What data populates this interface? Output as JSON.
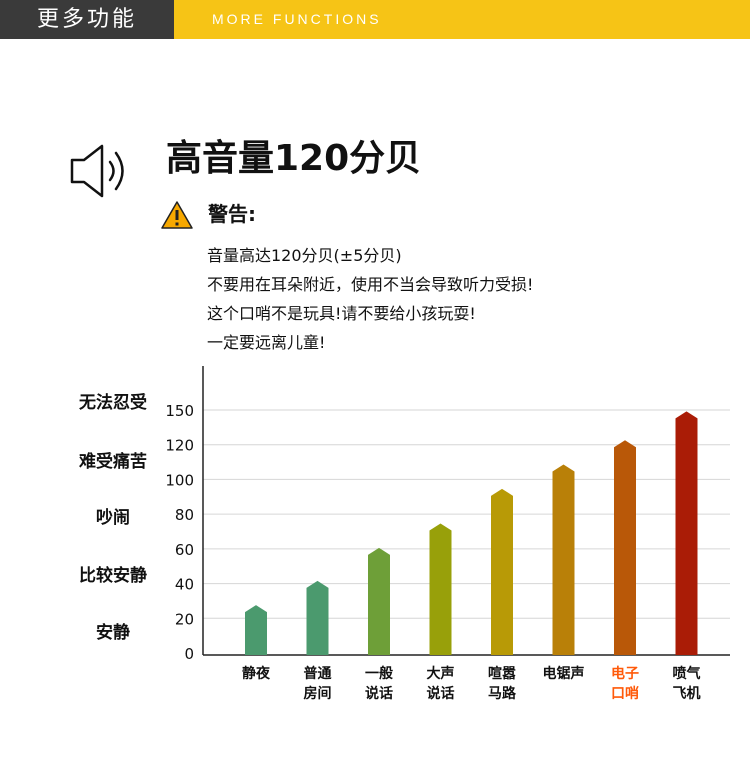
{
  "header": {
    "cn_title": "更多功能",
    "en_title": "MORE FUNCTIONS"
  },
  "feature": {
    "title": "高音量120分贝",
    "icon": "speaker-icon"
  },
  "warning": {
    "icon": "warning-triangle-icon",
    "title": "警告:",
    "lines": [
      "音量高达120分贝(±5分贝)",
      "不要用在耳朵附近，使用不当会导致听力受损!",
      "这个口哨不是玩具!请不要给小孩玩耍!",
      "一定要远离儿童!"
    ]
  },
  "levels": [
    "无法忍受",
    "难受痛苦",
    "吵闹",
    "比较安静",
    "安静"
  ],
  "colors": {
    "header_bg": "#f6c416",
    "header_dark": "#3a3a3a",
    "highlight_label": "#ff5a0a"
  },
  "chart_data": {
    "type": "bar",
    "yticks": [
      "150",
      "120",
      "100",
      "80",
      "60",
      "40",
      "20",
      "0"
    ],
    "categories": [
      {
        "line1": "静夜",
        "line2": ""
      },
      {
        "line1": "普通",
        "line2": "房间"
      },
      {
        "line1": "一般",
        "line2": "说话"
      },
      {
        "line1": "大声",
        "line2": "说话"
      },
      {
        "line1": "喧嚣",
        "line2": "马路"
      },
      {
        "line1": "电锯声",
        "line2": ""
      },
      {
        "line1": "电子",
        "line2": "口哨"
      },
      {
        "line1": "喷气",
        "line2": "飞机"
      }
    ],
    "values": [
      27,
      41,
      60,
      74,
      94,
      108,
      123,
      148
    ],
    "bar_colors": [
      "#4b9a6e",
      "#4b9a6e",
      "#6e9f38",
      "#98a00a",
      "#b89a06",
      "#b98008",
      "#b95808",
      "#aa1c06"
    ],
    "highlight_index": 6,
    "grid": true
  }
}
